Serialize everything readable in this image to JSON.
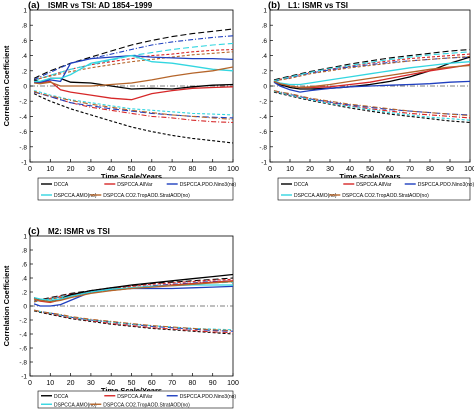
{
  "chart_data": [
    {
      "type": "line",
      "panel_label": "(a)",
      "title": "ISMR vs TSI: AD 1854–1999",
      "xlabel": "Time Scale/Years",
      "ylabel": "Correlation Coefficient",
      "xlim": [
        0,
        100
      ],
      "ylim": [
        -1,
        1
      ],
      "xticks": [
        0,
        10,
        20,
        30,
        40,
        50,
        60,
        70,
        80,
        90,
        100
      ],
      "yticks": [
        -1,
        -0.8,
        -0.6,
        -0.4,
        -0.2,
        0,
        0.2,
        0.4,
        0.6,
        0.8,
        1
      ],
      "grid": false,
      "legend_position": "bottom",
      "legend": [
        "DCCA",
        "DSPCCA.AllVar",
        "DSPCCA.PDO.Nino3(no)",
        "DSPCCA.AMO(no)",
        "DSPCCA.CO2.TropAOD.StratAOD(no)"
      ],
      "x": [
        2,
        5,
        10,
        15,
        20,
        30,
        40,
        50,
        60,
        70,
        80,
        90,
        100
      ],
      "series": [
        {
          "name": "DCCA",
          "color": "#000000",
          "values": [
            0.08,
            0.05,
            0.1,
            0.1,
            0.05,
            0.04,
            0.0,
            -0.04,
            -0.03,
            -0.04,
            -0.01,
            0.01,
            0.02
          ]
        },
        {
          "name": "DSPCCA.AllVar",
          "color": "#d62728",
          "values": [
            0.06,
            0.04,
            0.06,
            -0.05,
            -0.08,
            -0.12,
            -0.16,
            -0.18,
            -0.1,
            -0.06,
            -0.03,
            -0.02,
            -0.01
          ]
        },
        {
          "name": "DSPCCA.PDO.Nino3(no)",
          "color": "#1f3fbf",
          "values": [
            0.05,
            0.05,
            0.08,
            0.06,
            0.3,
            0.36,
            0.38,
            0.4,
            0.38,
            0.37,
            0.36,
            0.36,
            0.35
          ]
        },
        {
          "name": "DSPCCA.AMO(no)",
          "color": "#33d6e0",
          "values": [
            0.06,
            0.06,
            0.1,
            0.1,
            0.15,
            0.3,
            0.35,
            0.4,
            0.32,
            0.3,
            0.26,
            0.22,
            0.2
          ]
        },
        {
          "name": "DSPCCA.CO2.TropAOD.StratAOD(no)",
          "color": "#b5652a",
          "values": [
            0.04,
            0.03,
            0.05,
            0.0,
            0.0,
            0.0,
            0.02,
            0.04,
            0.08,
            0.13,
            0.17,
            0.2,
            0.25
          ]
        }
      ],
      "confidence_bounds": [
        {
          "color": "#000000",
          "upper": [
            0.1,
            0.14,
            0.2,
            0.25,
            0.3,
            0.38,
            0.46,
            0.54,
            0.6,
            0.65,
            0.69,
            0.72,
            0.75
          ],
          "lower": [
            -0.1,
            -0.14,
            -0.2,
            -0.25,
            -0.3,
            -0.38,
            -0.46,
            -0.54,
            -0.6,
            -0.65,
            -0.69,
            -0.72,
            -0.75
          ]
        },
        {
          "color": "#d62728",
          "upper": [
            0.08,
            0.1,
            0.14,
            0.18,
            0.22,
            0.28,
            0.32,
            0.36,
            0.4,
            0.42,
            0.45,
            0.47,
            0.48
          ],
          "lower": [
            -0.08,
            -0.1,
            -0.14,
            -0.18,
            -0.22,
            -0.28,
            -0.32,
            -0.36,
            -0.4,
            -0.42,
            -0.45,
            -0.47,
            -0.48
          ]
        },
        {
          "color": "#1f3fbf",
          "upper": [
            0.08,
            0.12,
            0.18,
            0.24,
            0.3,
            0.36,
            0.42,
            0.48,
            0.54,
            0.58,
            0.61,
            0.64,
            0.66
          ],
          "lower": [
            -0.08,
            -0.1,
            -0.14,
            -0.18,
            -0.22,
            -0.26,
            -0.3,
            -0.33,
            -0.36,
            -0.38,
            -0.4,
            -0.41,
            -0.42
          ]
        },
        {
          "color": "#33d6e0",
          "upper": [
            0.06,
            0.1,
            0.14,
            0.18,
            0.22,
            0.28,
            0.34,
            0.4,
            0.44,
            0.48,
            0.51,
            0.54,
            0.56
          ],
          "lower": [
            -0.06,
            -0.08,
            -0.12,
            -0.15,
            -0.18,
            -0.22,
            -0.26,
            -0.3,
            -0.32,
            -0.34,
            -0.36,
            -0.37,
            -0.38
          ]
        },
        {
          "color": "#b5652a",
          "upper": [
            0.07,
            0.1,
            0.13,
            0.16,
            0.19,
            0.24,
            0.28,
            0.32,
            0.35,
            0.38,
            0.41,
            0.43,
            0.45
          ],
          "lower": [
            -0.07,
            -0.1,
            -0.13,
            -0.16,
            -0.19,
            -0.24,
            -0.28,
            -0.32,
            -0.35,
            -0.38,
            -0.4,
            -0.42,
            -0.44
          ]
        }
      ]
    },
    {
      "type": "line",
      "panel_label": "(b)",
      "title": "L1: ISMR vs TSI",
      "xlabel": "Time Scale/Years",
      "ylabel": "",
      "xlim": [
        0,
        100
      ],
      "ylim": [
        -1,
        1
      ],
      "xticks": [
        0,
        10,
        20,
        30,
        40,
        50,
        60,
        70,
        80,
        90,
        100
      ],
      "yticks": [
        -1,
        -0.8,
        -0.6,
        -0.4,
        -0.2,
        0,
        0.2,
        0.4,
        0.6,
        0.8,
        1
      ],
      "grid": false,
      "legend_position": "bottom",
      "legend": [
        "DCCA",
        "DSPCCA.AllVar",
        "DSPCCA.PDO.Nino3(no)",
        "DSPCCA.AMO(no)",
        "DSPCCA.CO2.TropAOD.StratAOD(no)"
      ],
      "x": [
        2,
        5,
        10,
        15,
        20,
        30,
        40,
        50,
        60,
        70,
        80,
        90,
        100
      ],
      "series": [
        {
          "name": "DCCA",
          "color": "#000000",
          "values": [
            0.06,
            0.02,
            -0.02,
            -0.04,
            -0.04,
            -0.03,
            -0.01,
            0.02,
            0.06,
            0.12,
            0.2,
            0.3,
            0.38
          ]
        },
        {
          "name": "DSPCCA.AllVar",
          "color": "#d62728",
          "values": [
            0.06,
            0.03,
            0.0,
            -0.02,
            -0.02,
            -0.01,
            0.02,
            0.05,
            0.1,
            0.15,
            0.2,
            0.24,
            0.28
          ]
        },
        {
          "name": "DSPCCA.PDO.Nino3(no)",
          "color": "#1f3fbf",
          "values": [
            0.05,
            0.0,
            -0.05,
            -0.08,
            -0.06,
            -0.03,
            -0.01,
            0.0,
            0.01,
            0.02,
            0.03,
            0.05,
            0.06
          ]
        },
        {
          "name": "DSPCCA.AMO(no)",
          "color": "#33d6e0",
          "values": [
            0.07,
            0.04,
            0.02,
            0.02,
            0.04,
            0.08,
            0.12,
            0.16,
            0.2,
            0.24,
            0.27,
            0.3,
            0.32
          ]
        },
        {
          "name": "DSPCCA.CO2.TropAOD.StratAOD(no)",
          "color": "#b5652a",
          "values": [
            0.06,
            0.03,
            0.0,
            -0.02,
            -0.01,
            0.02,
            0.06,
            0.1,
            0.14,
            0.18,
            0.22,
            0.25,
            0.27
          ]
        }
      ],
      "confidence_bounds": [
        {
          "color": "#000000",
          "upper": [
            0.08,
            0.1,
            0.13,
            0.16,
            0.19,
            0.24,
            0.29,
            0.33,
            0.37,
            0.4,
            0.43,
            0.46,
            0.48
          ],
          "lower": [
            -0.08,
            -0.1,
            -0.13,
            -0.16,
            -0.19,
            -0.24,
            -0.29,
            -0.33,
            -0.37,
            -0.4,
            -0.43,
            -0.46,
            -0.48
          ]
        },
        {
          "color": "#d62728",
          "upper": [
            0.07,
            0.09,
            0.12,
            0.15,
            0.18,
            0.22,
            0.26,
            0.3,
            0.33,
            0.36,
            0.38,
            0.4,
            0.42
          ],
          "lower": [
            -0.07,
            -0.09,
            -0.12,
            -0.15,
            -0.18,
            -0.22,
            -0.26,
            -0.3,
            -0.33,
            -0.36,
            -0.38,
            -0.4,
            -0.42
          ]
        },
        {
          "color": "#1f3fbf",
          "upper": [
            0.06,
            0.08,
            0.11,
            0.14,
            0.17,
            0.21,
            0.25,
            0.28,
            0.31,
            0.33,
            0.35,
            0.37,
            0.38
          ],
          "lower": [
            -0.06,
            -0.08,
            -0.11,
            -0.14,
            -0.17,
            -0.21,
            -0.25,
            -0.28,
            -0.31,
            -0.33,
            -0.35,
            -0.37,
            -0.38
          ]
        },
        {
          "color": "#33d6e0",
          "upper": [
            0.07,
            0.09,
            0.12,
            0.15,
            0.18,
            0.23,
            0.27,
            0.31,
            0.35,
            0.38,
            0.41,
            0.43,
            0.45
          ],
          "lower": [
            -0.07,
            -0.09,
            -0.12,
            -0.15,
            -0.18,
            -0.23,
            -0.27,
            -0.31,
            -0.35,
            -0.38,
            -0.41,
            -0.43,
            -0.45
          ]
        },
        {
          "color": "#b5652a",
          "upper": [
            0.06,
            0.08,
            0.1,
            0.13,
            0.16,
            0.2,
            0.24,
            0.27,
            0.3,
            0.33,
            0.35,
            0.37,
            0.39
          ],
          "lower": [
            -0.06,
            -0.08,
            -0.1,
            -0.13,
            -0.16,
            -0.2,
            -0.24,
            -0.27,
            -0.3,
            -0.33,
            -0.35,
            -0.37,
            -0.39
          ]
        }
      ]
    },
    {
      "type": "line",
      "panel_label": "(c)",
      "title": "M2: ISMR vs TSI",
      "xlabel": "Time Scale/Years",
      "ylabel": "Correlation Coefficient",
      "xlim": [
        0,
        100
      ],
      "ylim": [
        -1,
        1
      ],
      "xticks": [
        0,
        10,
        20,
        30,
        40,
        50,
        60,
        70,
        80,
        90,
        100
      ],
      "yticks": [
        -1,
        -0.8,
        -0.6,
        -0.4,
        -0.2,
        0,
        0.2,
        0.4,
        0.6,
        0.8,
        1
      ],
      "grid": false,
      "legend_position": "bottom",
      "legend": [
        "DCCA",
        "DSPCCA.AllVar",
        "DSPCCA.PDO.Nino3(no)",
        "DSPCCA.AMO(no)",
        "DSPCCA.CO2.TropAOD.StratAOD(no)"
      ],
      "x": [
        2,
        5,
        10,
        15,
        20,
        30,
        40,
        50,
        60,
        70,
        80,
        90,
        100
      ],
      "series": [
        {
          "name": "DCCA",
          "color": "#000000",
          "values": [
            0.12,
            0.08,
            0.06,
            0.1,
            0.16,
            0.22,
            0.26,
            0.3,
            0.33,
            0.36,
            0.39,
            0.42,
            0.45
          ]
        },
        {
          "name": "DSPCCA.AllVar",
          "color": "#d62728",
          "values": [
            0.1,
            0.07,
            0.05,
            0.09,
            0.14,
            0.2,
            0.24,
            0.26,
            0.28,
            0.3,
            0.32,
            0.34,
            0.36
          ]
        },
        {
          "name": "DSPCCA.PDO.Nino3(no)",
          "color": "#1f3fbf",
          "values": [
            0.03,
            0.0,
            0.0,
            0.02,
            0.08,
            0.2,
            0.24,
            0.25,
            0.25,
            0.25,
            0.26,
            0.27,
            0.28
          ]
        },
        {
          "name": "DSPCCA.AMO(no)",
          "color": "#33d6e0",
          "values": [
            0.12,
            0.1,
            0.08,
            0.1,
            0.14,
            0.2,
            0.24,
            0.26,
            0.28,
            0.29,
            0.3,
            0.3,
            0.3
          ]
        },
        {
          "name": "DSPCCA.CO2.TropAOD.StratAOD(no)",
          "color": "#b5652a",
          "values": [
            0.1,
            0.08,
            0.06,
            0.08,
            0.12,
            0.18,
            0.22,
            0.25,
            0.27,
            0.29,
            0.31,
            0.33,
            0.35
          ]
        }
      ],
      "confidence_bounds": [
        {
          "color": "#000000",
          "upper": [
            0.07,
            0.09,
            0.12,
            0.15,
            0.18,
            0.22,
            0.26,
            0.29,
            0.32,
            0.34,
            0.36,
            0.38,
            0.4
          ],
          "lower": [
            -0.07,
            -0.09,
            -0.12,
            -0.15,
            -0.18,
            -0.22,
            -0.26,
            -0.29,
            -0.32,
            -0.34,
            -0.36,
            -0.38,
            -0.4
          ]
        },
        {
          "color": "#d62728",
          "upper": [
            0.06,
            0.08,
            0.11,
            0.14,
            0.17,
            0.21,
            0.25,
            0.28,
            0.31,
            0.33,
            0.35,
            0.37,
            0.38
          ],
          "lower": [
            -0.06,
            -0.08,
            -0.11,
            -0.14,
            -0.17,
            -0.21,
            -0.25,
            -0.28,
            -0.31,
            -0.33,
            -0.35,
            -0.37,
            -0.38
          ]
        },
        {
          "color": "#1f3fbf",
          "upper": [
            0.06,
            0.08,
            0.1,
            0.13,
            0.16,
            0.2,
            0.23,
            0.26,
            0.29,
            0.31,
            0.33,
            0.35,
            0.36
          ],
          "lower": [
            -0.06,
            -0.08,
            -0.1,
            -0.13,
            -0.16,
            -0.2,
            -0.23,
            -0.26,
            -0.29,
            -0.31,
            -0.33,
            -0.35,
            -0.36
          ]
        },
        {
          "color": "#33d6e0",
          "upper": [
            0.06,
            0.08,
            0.1,
            0.13,
            0.16,
            0.2,
            0.23,
            0.26,
            0.28,
            0.3,
            0.32,
            0.33,
            0.34
          ],
          "lower": [
            -0.06,
            -0.08,
            -0.1,
            -0.13,
            -0.16,
            -0.2,
            -0.23,
            -0.26,
            -0.28,
            -0.3,
            -0.32,
            -0.33,
            -0.34
          ]
        },
        {
          "color": "#b5652a",
          "upper": [
            0.06,
            0.08,
            0.1,
            0.12,
            0.15,
            0.19,
            0.22,
            0.25,
            0.28,
            0.3,
            0.32,
            0.34,
            0.35
          ],
          "lower": [
            -0.06,
            -0.08,
            -0.1,
            -0.12,
            -0.15,
            -0.19,
            -0.22,
            -0.25,
            -0.28,
            -0.3,
            -0.32,
            -0.34,
            -0.35
          ]
        }
      ]
    }
  ]
}
